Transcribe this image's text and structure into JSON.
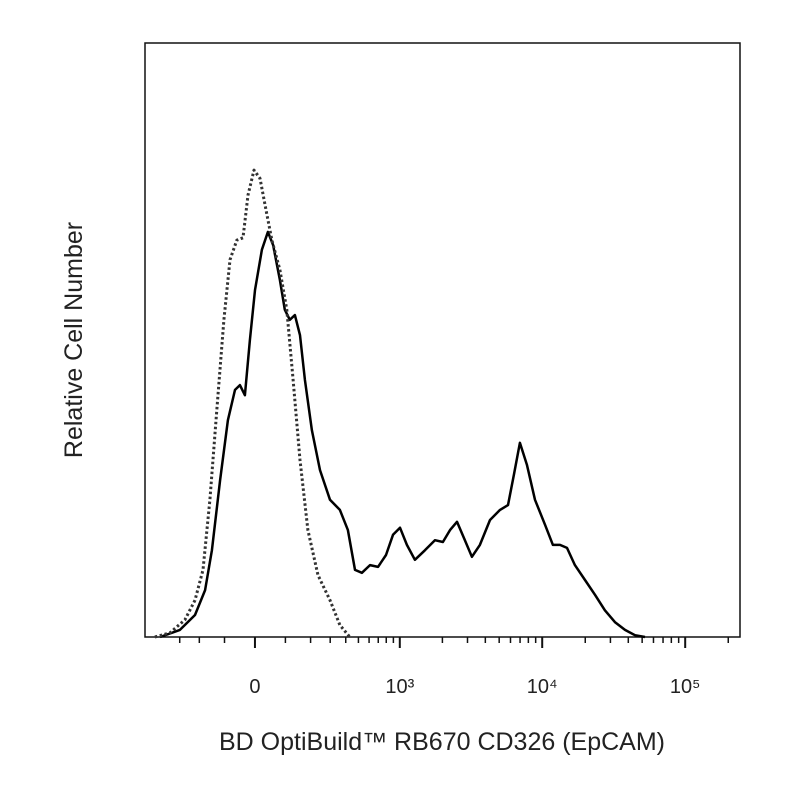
{
  "chart_data": {
    "type": "line",
    "x_label": "BD OptiBuild™ RB670 CD326 (EpCAM)",
    "y_label": "Relative Cell Number",
    "xscale": "biexponential",
    "xlim": [
      -559,
      241700
    ],
    "xticks": [
      0,
      {
        "value": 1000,
        "label": "10³"
      },
      {
        "value": 10000,
        "label": "10⁴"
      },
      {
        "value": 100000,
        "label": "10⁵"
      }
    ],
    "xminorticks": [
      -300,
      -200,
      -100,
      100,
      200,
      300,
      400,
      500,
      600,
      700,
      800,
      900,
      2000,
      3000,
      4000,
      5000,
      6000,
      7000,
      8000,
      9000,
      20000,
      30000,
      40000,
      50000,
      60000,
      70000,
      80000,
      90000,
      200000
    ],
    "ylim": [
      0,
      100
    ],
    "series": [
      {
        "color": "#000000",
        "line_style": "solid",
        "x": [
          -430,
          -299,
          -220,
          -175,
          -147,
          -116,
          -88,
          -64,
          -48,
          -32,
          -16,
          0,
          22,
          41,
          58,
          81,
          98,
          116,
          135,
          155,
          175,
          206,
          245,
          299,
          360,
          416,
          471,
          531,
          609,
          697,
          796,
          894,
          1003,
          1124,
          1280,
          1507,
          1772,
          2017,
          2260,
          2531,
          2877,
          3222,
          3667,
          4312,
          5065,
          5762,
          6341,
          6987,
          7820,
          8898,
          10457,
          11887,
          13308,
          14896,
          16944,
          19914,
          23383,
          27460,
          32262,
          37906,
          44531,
          52312
        ],
        "values": [
          0,
          1.2,
          3.7,
          7.9,
          14.6,
          26.4,
          36.5,
          41.6,
          42.4,
          40.7,
          50.0,
          58.4,
          65.2,
          68.2,
          66.0,
          60.1,
          55.1,
          53.4,
          54.2,
          50.8,
          43.3,
          34.8,
          28.1,
          23.1,
          21.4,
          18.0,
          11.3,
          10.8,
          12.1,
          11.8,
          13.8,
          17.2,
          18.4,
          15.5,
          13.0,
          14.6,
          16.3,
          16.0,
          18.0,
          19.4,
          16.3,
          13.5,
          15.5,
          19.7,
          21.4,
          22.2,
          27.3,
          32.7,
          29.0,
          23.1,
          18.9,
          15.5,
          15.5,
          15.0,
          12.1,
          9.6,
          7.1,
          4.5,
          2.5,
          1.2,
          0.3,
          0
        ]
      },
      {
        "color": "#333333",
        "line_style": "dotted",
        "x": [
          -471,
          -360,
          -271,
          -220,
          -184,
          -155,
          -128,
          -102,
          -81,
          -58,
          -38,
          -22,
          -3,
          16,
          35,
          54,
          81,
          105,
          128,
          155,
          188,
          235,
          299,
          360,
          430
        ],
        "values": [
          0,
          0.7,
          2.9,
          6.2,
          11.3,
          23.1,
          38.2,
          53.4,
          63.5,
          66.8,
          67.2,
          74.4,
          78.6,
          77.2,
          71.9,
          66.8,
          61.8,
          55.1,
          43.3,
          29.8,
          18.0,
          10.4,
          6.2,
          2.0,
          0
        ]
      }
    ]
  }
}
